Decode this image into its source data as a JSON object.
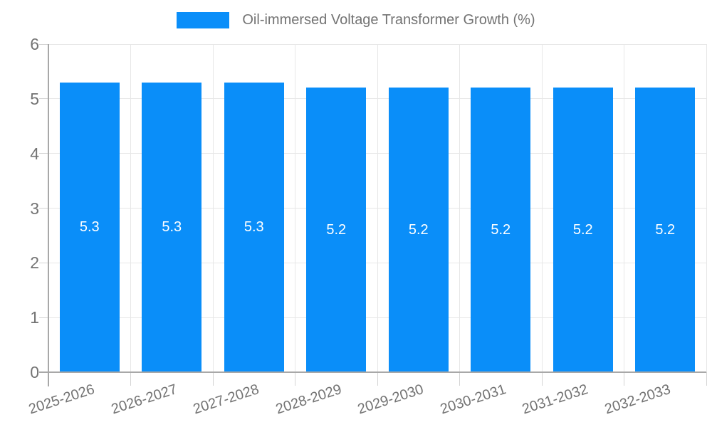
{
  "legend": {
    "items": [
      {
        "label": "Oil-immersed Voltage Transformer Growth (%)",
        "color": "#0A8EF9"
      }
    ]
  },
  "colors": {
    "bar": "#0A8EF9",
    "gridline": "#E7E7E7",
    "axis": "#A8A8A8",
    "tick": "#D4D4D4",
    "tick_text": "#737373",
    "value_label": "#FFFFFF",
    "background": "#FFFFFF"
  },
  "chart_data": {
    "type": "bar",
    "title": "Oil-immersed Voltage Transformer Growth (%)",
    "categories": [
      "2025-2026",
      "2026-2027",
      "2027-2028",
      "2028-2029",
      "2029-2030",
      "2030-2031",
      "2031-2032",
      "2032-2033"
    ],
    "series": [
      {
        "name": "Oil-immersed Voltage Transformer Growth (%)",
        "color": "#0A8EF9",
        "values": [
          5.3,
          5.3,
          5.3,
          5.2,
          5.2,
          5.2,
          5.2,
          5.2
        ]
      }
    ],
    "value_labels": [
      "5.3",
      "5.3",
      "5.3",
      "5.2",
      "5.2",
      "5.2",
      "5.2",
      "5.2"
    ],
    "xlabel": "",
    "ylabel": "",
    "ylim": [
      0,
      6
    ],
    "yticks": [
      0,
      1,
      2,
      3,
      4,
      5,
      6
    ],
    "grid": true,
    "legend_position": "top-center",
    "x_tick_rotation_deg": -18,
    "value_labels_shown": true
  }
}
